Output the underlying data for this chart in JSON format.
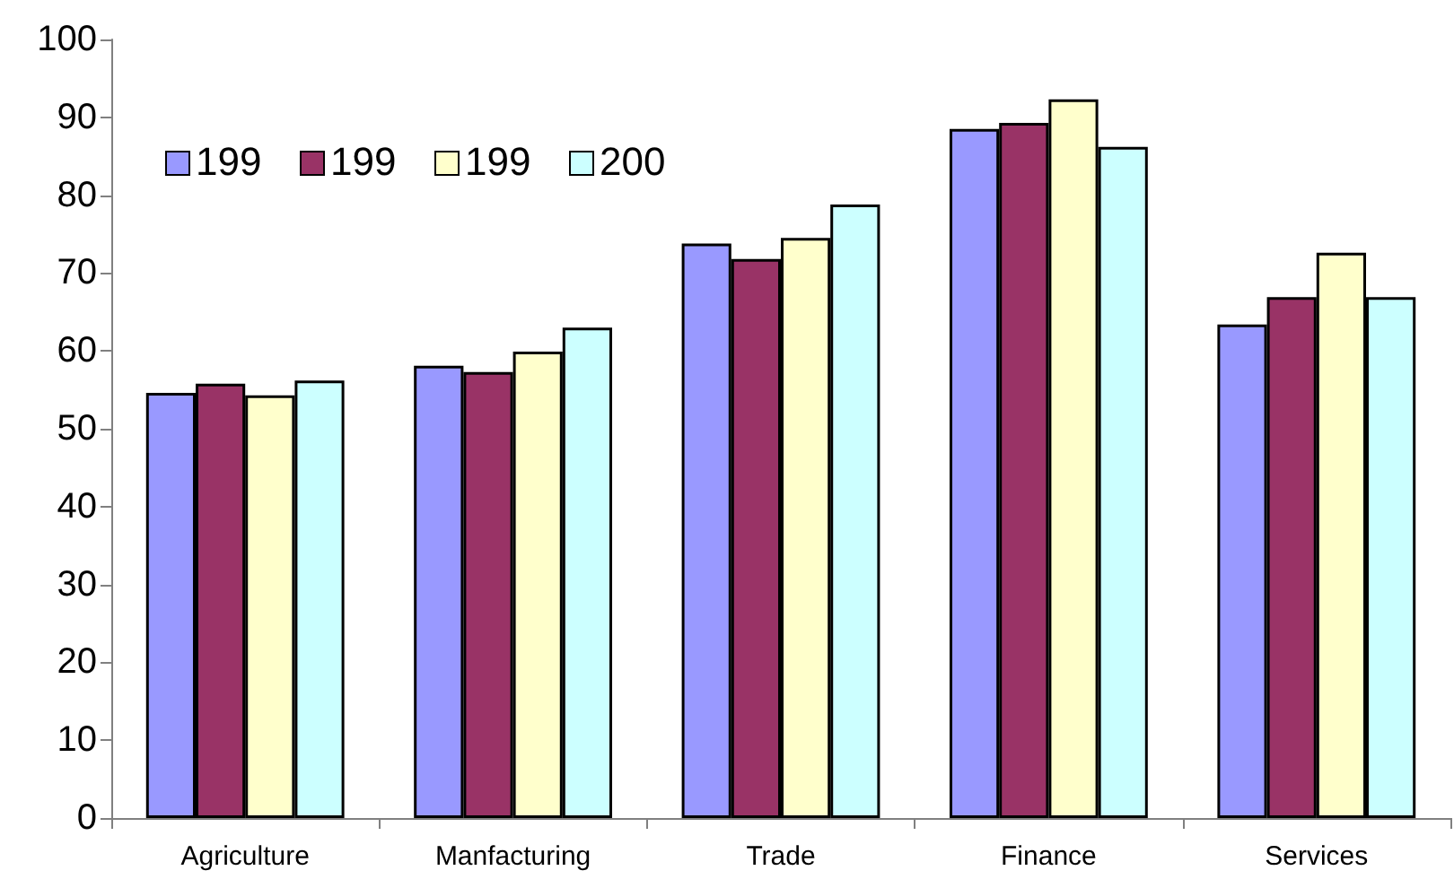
{
  "chart_data": {
    "type": "bar",
    "categories": [
      "Agriculture",
      "Manfacturing",
      "Trade",
      "Finance",
      "Services"
    ],
    "series": [
      {
        "name": "199",
        "color": "#9999ff",
        "values": [
          54.6,
          58.1,
          73.8,
          88.5,
          63.4
        ]
      },
      {
        "name": "199",
        "color": "#993366",
        "values": [
          55.8,
          57.3,
          71.8,
          89.3,
          66.9
        ]
      },
      {
        "name": "199",
        "color": "#ffffcc",
        "values": [
          54.3,
          59.9,
          74.5,
          92.3,
          72.6
        ]
      },
      {
        "name": "200",
        "color": "#ccffff",
        "values": [
          56.2,
          63.0,
          78.8,
          86.2,
          66.9
        ]
      }
    ],
    "ylim": [
      0,
      100
    ],
    "yticks": [
      0,
      10,
      20,
      30,
      40,
      50,
      60,
      70,
      80,
      90,
      100
    ],
    "grid": false,
    "legend": "top left"
  }
}
